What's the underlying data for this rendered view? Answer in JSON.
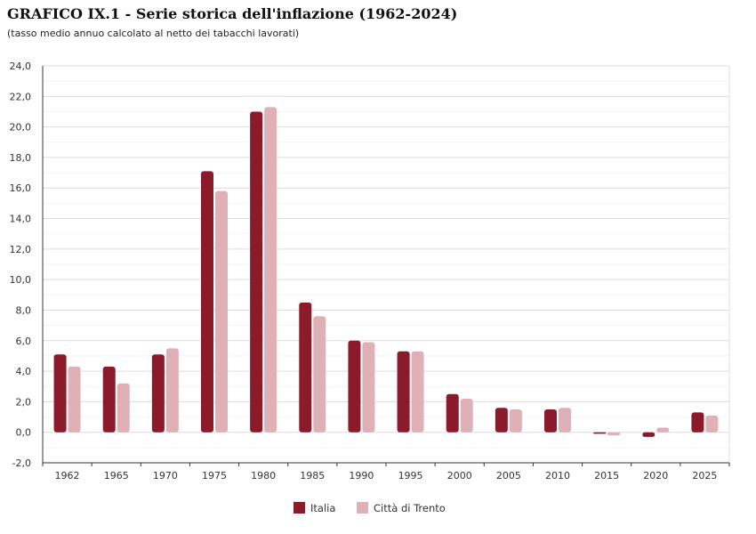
{
  "chart_data": {
    "type": "bar",
    "title": "GRAFICO IX.1 - Serie storica dell'inflazione (1962-2024)",
    "subtitle": "(tasso medio annuo calcolato al netto dei tabacchi lavorati)",
    "categories": [
      "1962",
      "1965",
      "1970",
      "1975",
      "1980",
      "1985",
      "1990",
      "1995",
      "2000",
      "2005",
      "2010",
      "2015",
      "2020",
      "2025"
    ],
    "series": [
      {
        "name": "Italia",
        "color": "#8b1a2b",
        "values": [
          5.1,
          4.3,
          5.1,
          17.1,
          21.0,
          8.5,
          6.0,
          5.3,
          2.5,
          1.6,
          1.5,
          -0.1,
          -0.3,
          1.3
        ]
      },
      {
        "name": "Città di Trento",
        "color": "#dfb0b6",
        "values": [
          4.3,
          3.2,
          5.5,
          15.8,
          21.3,
          7.6,
          5.9,
          5.3,
          2.2,
          1.5,
          1.6,
          -0.2,
          0.3,
          1.1
        ]
      }
    ],
    "ylim": [
      -2,
      24
    ],
    "yticks": [
      "-2,0",
      "0,0",
      "2,0",
      "4,0",
      "6,0",
      "8,0",
      "10,0",
      "12,0",
      "14,0",
      "16,0",
      "18,0",
      "20,0",
      "22,0",
      "24,0"
    ],
    "xlabel": "",
    "ylabel": "",
    "grid": true,
    "legend": "bottom-center"
  }
}
